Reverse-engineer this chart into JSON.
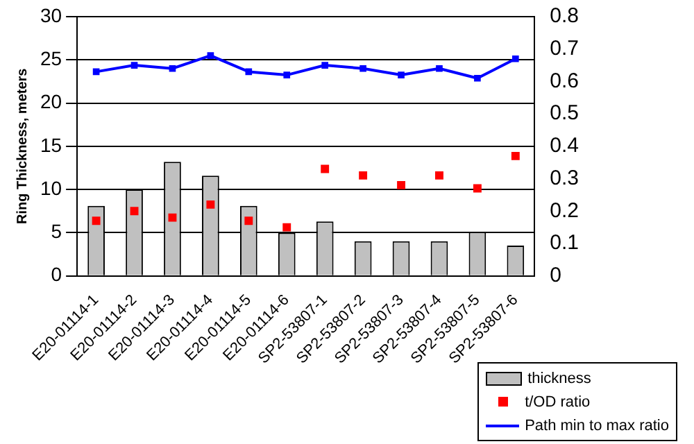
{
  "chart_data": {
    "type": "bar",
    "ylabel": "Ring Thickness, meters",
    "categories": [
      "E20-01114-1",
      "E20-01114-2",
      "E20-01114-3",
      "E20-01114-4",
      "E20-01114-5",
      "E20-01114-6",
      "SP2-53807-1",
      "SP2-53807-2",
      "SP2-53807-3",
      "SP2-53807-4",
      "SP2-53807-5",
      "SP2-53807-6"
    ],
    "series": [
      {
        "name": "thickness",
        "color": "#c0c0c0",
        "values": [
          8.1,
          10,
          13.2,
          11.6,
          8.1,
          5,
          6.3,
          4,
          4,
          4,
          5.1,
          3.5
        ]
      },
      {
        "name": "t/OD ratio",
        "type": "scatter",
        "axis": "y2",
        "marker": "square",
        "color": "#ff0000",
        "values": [
          0.17,
          0.2,
          0.18,
          0.22,
          0.17,
          0.15,
          0.33,
          0.31,
          0.28,
          0.31,
          0.27,
          0.37
        ]
      },
      {
        "name": "Path min to max ratio",
        "type": "line",
        "axis": "y2",
        "marker": "square",
        "color": "#0000ff",
        "values": [
          0.63,
          0.65,
          0.64,
          0.68,
          0.63,
          0.62,
          0.65,
          0.64,
          0.62,
          0.64,
          0.61,
          0.67
        ]
      }
    ],
    "ylim": [
      0,
      30
    ],
    "yticks": [
      0,
      5,
      10,
      15,
      20,
      25,
      30
    ],
    "y2lim": [
      0,
      0.8
    ],
    "y2ticks": [
      0,
      0.1,
      0.2,
      0.3,
      0.4,
      0.5,
      0.6,
      0.7,
      0.8
    ],
    "grid": "y",
    "legend": "bottom right"
  }
}
